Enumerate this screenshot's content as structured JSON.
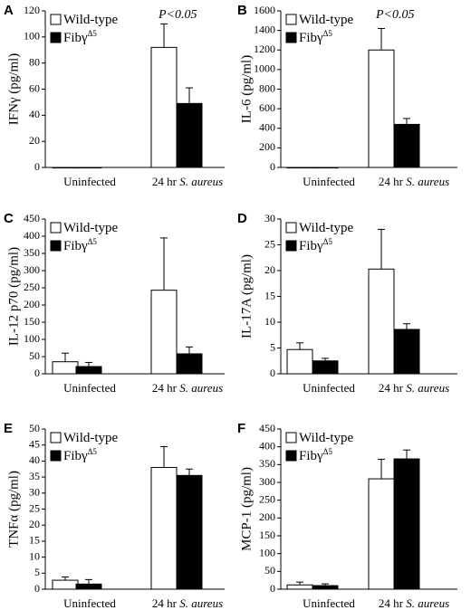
{
  "colors": {
    "wild_type_fill": "#ffffff",
    "fib_fill": "#000000",
    "axis": "#000000"
  },
  "chart_data": [
    {
      "panel": "A",
      "type": "bar",
      "ylabel": "IFNγ (pg/ml)",
      "ylim": [
        0,
        120
      ],
      "yticks": [
        0,
        20,
        40,
        60,
        80,
        100,
        120
      ],
      "categories": [
        "Uninfected",
        "24 hr S. aureus"
      ],
      "series": [
        {
          "name": "Wild-type",
          "values": [
            0,
            92
          ],
          "errors": [
            0,
            18
          ]
        },
        {
          "name": "Fibγ",
          "name_sup": "Δ5",
          "values": [
            0,
            49
          ],
          "errors": [
            0,
            12
          ]
        }
      ],
      "annotation": "P<0.05",
      "grid": false,
      "legend": "top-left"
    },
    {
      "panel": "B",
      "type": "bar",
      "ylabel": "IL-6 (pg/ml)",
      "ylim": [
        0,
        1600
      ],
      "yticks": [
        0,
        200,
        400,
        600,
        800,
        1000,
        1200,
        1400,
        1600
      ],
      "categories": [
        "Uninfected",
        "24 hr S. aureus"
      ],
      "series": [
        {
          "name": "Wild-type",
          "values": [
            0,
            1200
          ],
          "errors": [
            0,
            220
          ]
        },
        {
          "name": "Fibγ",
          "name_sup": "Δ5",
          "values": [
            0,
            440
          ],
          "errors": [
            0,
            60
          ]
        }
      ],
      "annotation": "P<0.05",
      "grid": false,
      "legend": "top-left"
    },
    {
      "panel": "C",
      "type": "bar",
      "ylabel": "IL-12 p70 (pg/ml)",
      "ylim": [
        0,
        450
      ],
      "yticks": [
        0,
        50,
        100,
        150,
        200,
        250,
        300,
        350,
        400,
        450
      ],
      "categories": [
        "Uninfected",
        "24 hr S. aureus"
      ],
      "series": [
        {
          "name": "Wild-type",
          "values": [
            35,
            243
          ],
          "errors": [
            25,
            152
          ]
        },
        {
          "name": "Fibγ",
          "name_sup": "Δ5",
          "values": [
            21,
            58
          ],
          "errors": [
            12,
            20
          ]
        }
      ],
      "grid": false,
      "legend": "top-left"
    },
    {
      "panel": "D",
      "type": "bar",
      "ylabel": "IL-17A (pg/ml)",
      "ylim": [
        0,
        30
      ],
      "yticks": [
        0,
        5,
        10,
        15,
        20,
        25,
        30
      ],
      "categories": [
        "Uninfected",
        "24 hr S. aureus"
      ],
      "series": [
        {
          "name": "Wild-type",
          "values": [
            4.7,
            20.3
          ],
          "errors": [
            1.3,
            7.7
          ]
        },
        {
          "name": "Fibγ",
          "name_sup": "Δ5",
          "values": [
            2.5,
            8.6
          ],
          "errors": [
            0.5,
            1.1
          ]
        }
      ],
      "grid": false,
      "legend": "top-left"
    },
    {
      "panel": "E",
      "type": "bar",
      "ylabel": "TNFα (pg/ml)",
      "ylim": [
        0,
        50
      ],
      "yticks": [
        0,
        5,
        10,
        15,
        20,
        25,
        30,
        35,
        40,
        45,
        50
      ],
      "categories": [
        "Uninfected",
        "24 hr S. aureus"
      ],
      "series": [
        {
          "name": "Wild-type",
          "values": [
            2.8,
            38
          ],
          "errors": [
            1.0,
            6.5
          ]
        },
        {
          "name": "Fibγ",
          "name_sup": "Δ5",
          "values": [
            1.6,
            35.5
          ],
          "errors": [
            1.4,
            2.0
          ]
        }
      ],
      "grid": false,
      "legend": "top-left"
    },
    {
      "panel": "F",
      "type": "bar",
      "ylabel": "MCP-1 (pg/ml)",
      "ylim": [
        0,
        450
      ],
      "yticks": [
        0,
        50,
        100,
        150,
        200,
        250,
        300,
        350,
        400,
        450
      ],
      "categories": [
        "Uninfected",
        "24 hr S. aureus"
      ],
      "series": [
        {
          "name": "Wild-type",
          "values": [
            12,
            310
          ],
          "errors": [
            8,
            55
          ]
        },
        {
          "name": "Fibγ",
          "name_sup": "Δ5",
          "values": [
            10,
            366
          ],
          "errors": [
            5,
            25
          ]
        }
      ],
      "grid": false,
      "legend": "top-left"
    }
  ]
}
